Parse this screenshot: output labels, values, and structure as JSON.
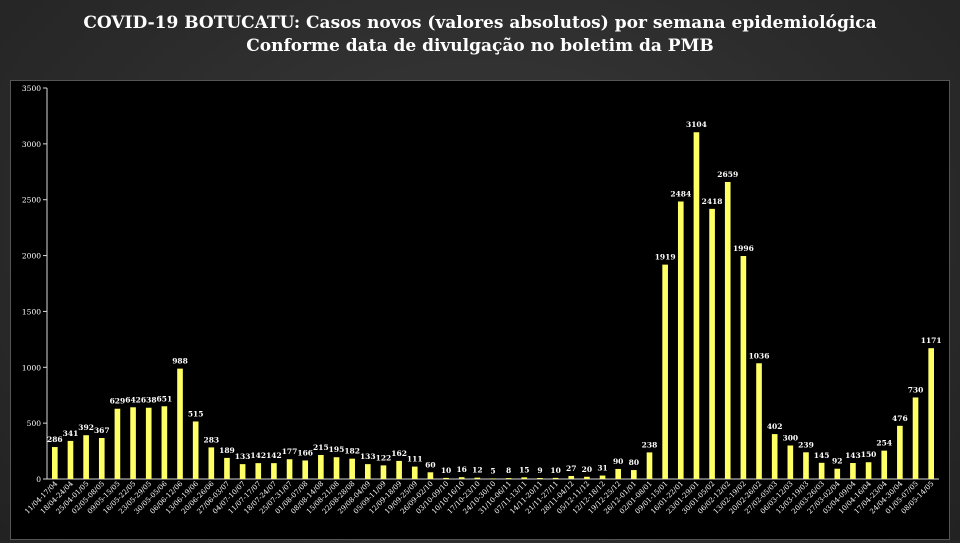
{
  "chart_data": {
    "type": "bar",
    "title": "COVID-19 BOTUCATU: Casos novos (valores absolutos) por semana epidemiológica",
    "subtitle": "Conforme data de divulgação no boletim da PMB",
    "xlabel": "",
    "ylabel": "",
    "ylim": [
      0,
      3500
    ],
    "yticks": [
      0,
      500,
      1000,
      1500,
      2000,
      2500,
      3000,
      3500
    ],
    "grid": false,
    "legend": "none",
    "bar_color": "#ffff66",
    "background": "#000000",
    "categories": [
      "11/04-17/04",
      "18/04-24/04",
      "25/04-01/05",
      "02/05-08/05",
      "09/05-15/05",
      "16/05-22/05",
      "23/05-29/05",
      "30/05-05/06",
      "06/06-12/06",
      "13/06-19/06",
      "20/06-26/06",
      "27/06-03/07",
      "04/07-10/07",
      "11/07-17/07",
      "18/07-24/07",
      "25/07-31/07",
      "01/08-07/08",
      "08/08-14/08",
      "15/08-21/08",
      "22/08-28/08",
      "29/08-04/09",
      "05/09-11/09",
      "12/09-18/09",
      "19/09-25/09",
      "26/09-02/10",
      "03/10-09/10",
      "10/10-16/10",
      "17/10-23/10",
      "24/10-30/10",
      "31/10-06/11",
      "07/11-13/11",
      "14/11-20/11",
      "21/11-27/11",
      "28/11-04/12",
      "05/12-11/12",
      "12/12-18/12",
      "19/12-25/12",
      "26/12-01/01",
      "02/01-08/01",
      "09/01-15/01",
      "16/01-22/01",
      "23/01-29/01",
      "30/01-05/02",
      "06/02-12/02",
      "13/02-19/02",
      "20/02-26/02",
      "27/02-05/03",
      "06/03-12/03",
      "13/03-19/03",
      "20/03-26/03",
      "27/03-02/04",
      "03/04-09/04",
      "10/04-16/04",
      "17/04-23/04",
      "24/04-30/04",
      "01/05-07/05",
      "08/05-14/05"
    ],
    "values": [
      286,
      341,
      392,
      367,
      629,
      642,
      638,
      651,
      988,
      515,
      283,
      189,
      133,
      142,
      142,
      177,
      166,
      215,
      195,
      182,
      133,
      122,
      162,
      111,
      60,
      10,
      16,
      12,
      5,
      8,
      15,
      9,
      10,
      27,
      20,
      31,
      90,
      80,
      238,
      1919,
      2484,
      3104,
      2418,
      2659,
      1996,
      1036,
      402,
      300,
      239,
      145,
      92,
      143,
      150,
      254,
      476,
      730,
      1171
    ]
  }
}
